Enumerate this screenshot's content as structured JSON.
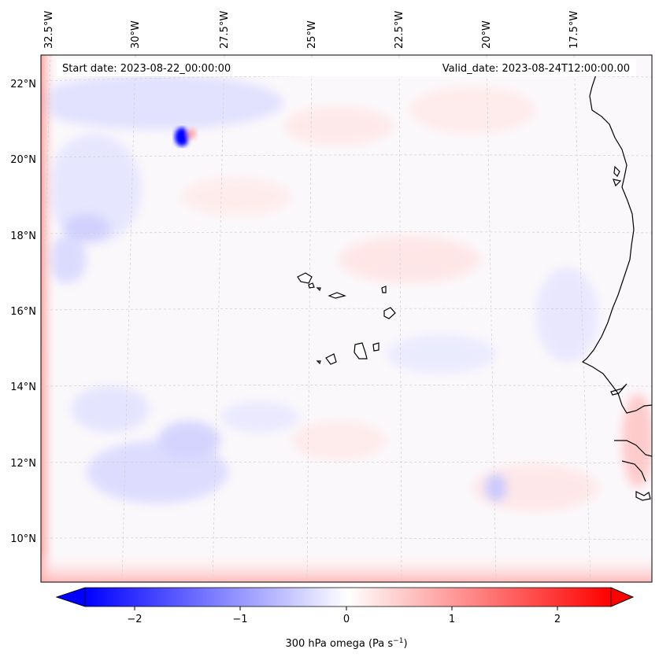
{
  "annotations": {
    "start_date": "Start date: 2023-08-22_00:00:00",
    "valid_date": "Valid_date: 2023-08-24T12:00:00.00"
  },
  "longitude_ticks": [
    "32.5°W",
    "30°W",
    "27.5°W",
    "25°W",
    "22.5°W",
    "20°W",
    "17.5°W"
  ],
  "latitude_ticks": [
    "22°N",
    "20°N",
    "18°N",
    "16°N",
    "14°N",
    "12°N",
    "10°N"
  ],
  "colorbar": {
    "label": "300 hPa omega (Pa s",
    "label_exponent": "−1",
    "label_close": ")",
    "ticks": [
      "−2",
      "−1",
      "0",
      "1",
      "2"
    ],
    "range": [
      -2.75,
      2.75
    ],
    "extend": "both",
    "colormap": "bwr",
    "colors": {
      "low": "#0000ff",
      "mid": "#ffffff",
      "high": "#ff0000"
    }
  },
  "map": {
    "field": "300 hPa omega",
    "units": "Pa s-1",
    "gridlines": true,
    "coastlines": true,
    "icon_names": [
      "coastline-icon",
      "island-icon"
    ]
  }
}
